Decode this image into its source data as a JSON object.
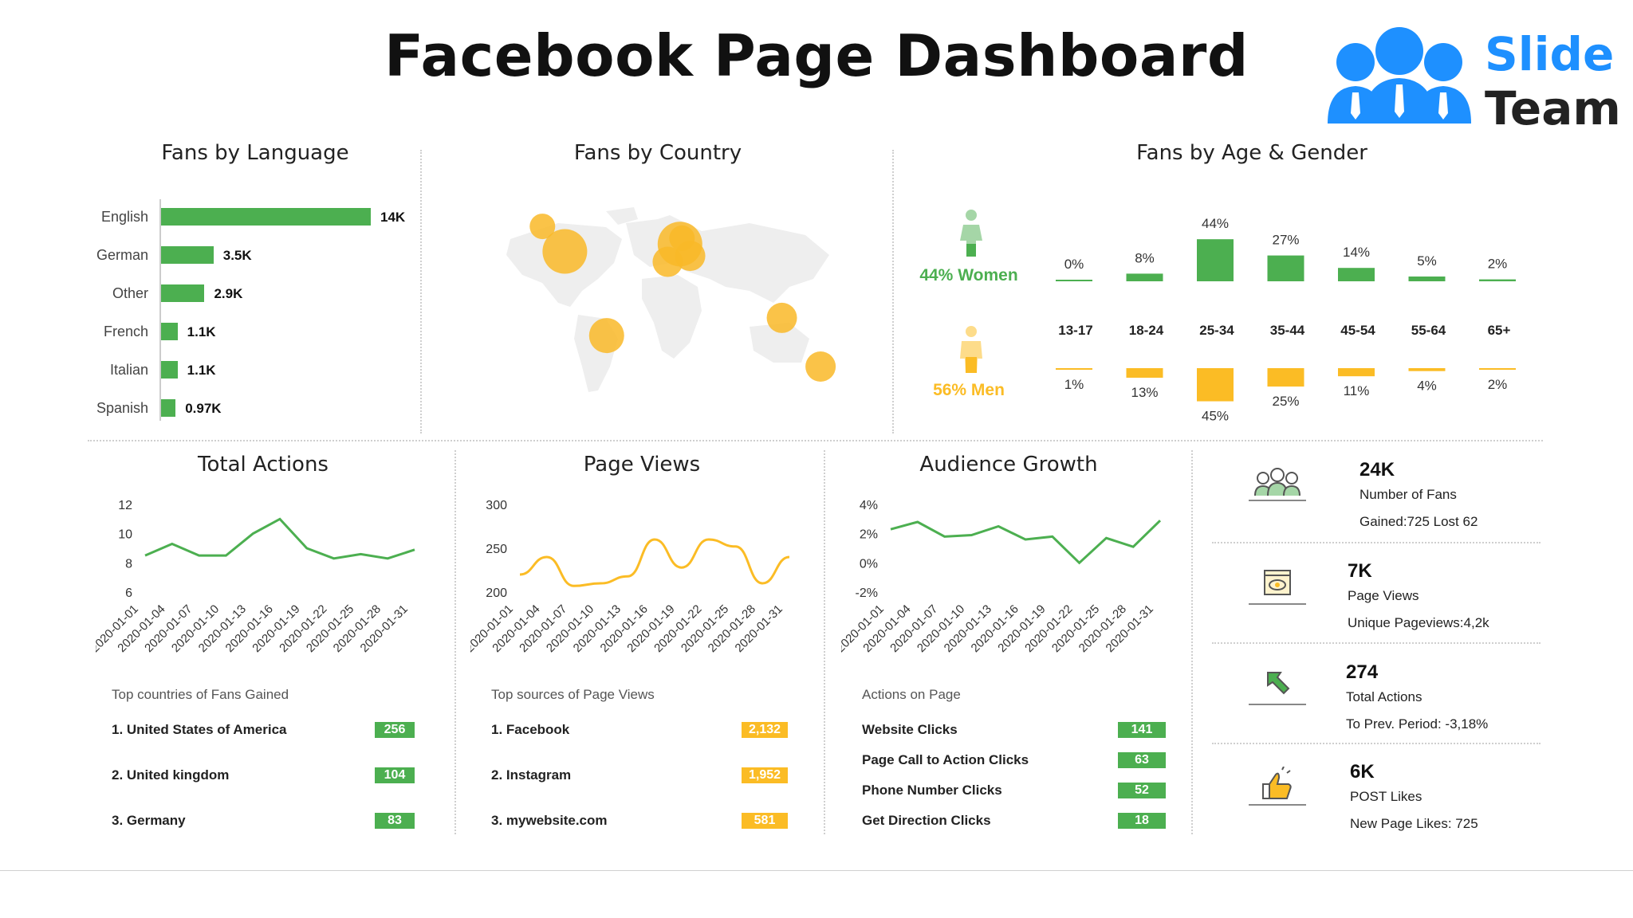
{
  "title": "Facebook Page Dashboard",
  "logo": {
    "word1": "Slide",
    "word2": "Team",
    "color_blue": "#1e90ff",
    "color_dark": "#222222"
  },
  "colors": {
    "green": "#4caf50",
    "yellow": "#fbbc25",
    "bubble": "#f9b928"
  },
  "sections": {
    "language": "Fans by Language",
    "country": "Fans by Country",
    "age_gender": "Fans by Age & Gender",
    "total_actions": "Total Actions",
    "page_views": "Page Views",
    "audience_growth": "Audience Growth"
  },
  "fans_by_language": {
    "type": "bar",
    "categories": [
      "English",
      "German",
      "Other",
      "French",
      "Italian",
      "Spanish"
    ],
    "values": [
      14000,
      3500,
      2900,
      1100,
      1100,
      970
    ],
    "labels": [
      "14K",
      "3.5K",
      "2.9K",
      "1.1K",
      "1.1K",
      "0.97K"
    ]
  },
  "fans_by_country": {
    "type": "bubble-map",
    "bubbles": [
      {
        "lon": -125,
        "lat": 62,
        "size": 1
      },
      {
        "lon": -103,
        "lat": 45,
        "size": 3
      },
      {
        "lon": -62,
        "lat": -12,
        "size": 2
      },
      {
        "lon": 10,
        "lat": 50,
        "size": 3
      },
      {
        "lon": -2,
        "lat": 38,
        "size": 1.5
      },
      {
        "lon": 20,
        "lat": 42,
        "size": 1.5
      },
      {
        "lon": 12,
        "lat": 54,
        "size": 1
      },
      {
        "lon": 110,
        "lat": 0,
        "size": 1.5
      },
      {
        "lon": 148,
        "lat": -33,
        "size": 1.5
      }
    ]
  },
  "age_gender": {
    "women_label": "44% Women",
    "men_label": "56% Men",
    "categories": [
      "13-17",
      "18-24",
      "25-34",
      "35-44",
      "45-54",
      "55-64",
      "65+"
    ],
    "women": [
      0,
      8,
      44,
      27,
      14,
      5,
      2
    ],
    "men": [
      1,
      13,
      45,
      25,
      11,
      4,
      2
    ],
    "women_labels": [
      "0%",
      "8%",
      "44%",
      "27%",
      "14%",
      "5%",
      "2%"
    ],
    "men_labels": [
      "1%",
      "13%",
      "45%",
      "25%",
      "11%",
      "4%",
      "2%"
    ]
  },
  "total_actions": {
    "chart_data": {
      "type": "line",
      "x": [
        "2020-01-01",
        "2020-01-04",
        "2020-01-07",
        "2020-01-10",
        "2020-01-13",
        "2020-01-16",
        "2020-01-19",
        "2020-01-22",
        "2020-01-25",
        "2020-01-28",
        "2020-01-31"
      ],
      "values": [
        8.5,
        9.3,
        8.5,
        8.5,
        10.0,
        11.0,
        9.0,
        8.3,
        8.6,
        8.3,
        8.9
      ],
      "yticks": [
        "12",
        "10",
        "8",
        "6"
      ],
      "ylim": [
        6,
        12
      ]
    },
    "list_head": "Top countries of Fans Gained",
    "rows": [
      {
        "label": "1. United States of America",
        "value": "256"
      },
      {
        "label": "2. United kingdom",
        "value": "104"
      },
      {
        "label": "3. Germany",
        "value": "83"
      }
    ]
  },
  "page_views": {
    "chart_data": {
      "type": "line",
      "x": [
        "2020-01-01",
        "2020-01-04",
        "2020-01-07",
        "2020-01-10",
        "2020-01-13",
        "2020-01-16",
        "2020-01-19",
        "2020-01-22",
        "2020-01-25",
        "2020-01-28",
        "2020-01-31"
      ],
      "values": [
        220,
        240,
        207,
        210,
        218,
        260,
        228,
        260,
        252,
        210,
        240
      ],
      "yticks": [
        "300",
        "250",
        "200"
      ],
      "ylim": [
        200,
        300
      ]
    },
    "list_head": "Top sources of Page Views",
    "rows": [
      {
        "label": "1. Facebook",
        "value": "2,132"
      },
      {
        "label": "2. Instagram",
        "value": "1,952"
      },
      {
        "label": "3. mywebsite.com",
        "value": "581"
      }
    ]
  },
  "audience_growth": {
    "chart_data": {
      "type": "line",
      "x": [
        "2020-01-01",
        "2020-01-04",
        "2020-01-07",
        "2020-01-10",
        "2020-01-13",
        "2020-01-16",
        "2020-01-19",
        "2020-01-22",
        "2020-01-25",
        "2020-01-28",
        "2020-01-31"
      ],
      "values": [
        2.3,
        2.8,
        1.8,
        1.9,
        2.5,
        1.6,
        1.8,
        0.0,
        1.7,
        1.1,
        2.9
      ],
      "yticks": [
        "4%",
        "2%",
        "0%",
        "-2%"
      ],
      "ylim": [
        -2,
        4
      ]
    },
    "list_head": "Actions on Page",
    "rows": [
      {
        "label": "Website Clicks",
        "value": "141"
      },
      {
        "label": "Page Call to Action Clicks",
        "value": "63"
      },
      {
        "label": "Phone Number Clicks",
        "value": "52"
      },
      {
        "label": "Get Direction Clicks",
        "value": "18"
      }
    ]
  },
  "kpis": [
    {
      "value": "24K",
      "label": "Number of Fans",
      "sub": "Gained:725 Lost 62",
      "icon": "group-icon"
    },
    {
      "value": "7K",
      "label": "Page Views",
      "sub": "Unique Pageviews:4,2k",
      "icon": "eye-window-icon"
    },
    {
      "value": "274",
      "label": "Total Actions",
      "sub": "To Prev. Period: -3,18%",
      "icon": "cursor-arrow-icon"
    },
    {
      "value": "6K",
      "label": "POST Likes",
      "sub": "New Page Likes: 725",
      "icon": "thumbs-up-icon"
    }
  ]
}
